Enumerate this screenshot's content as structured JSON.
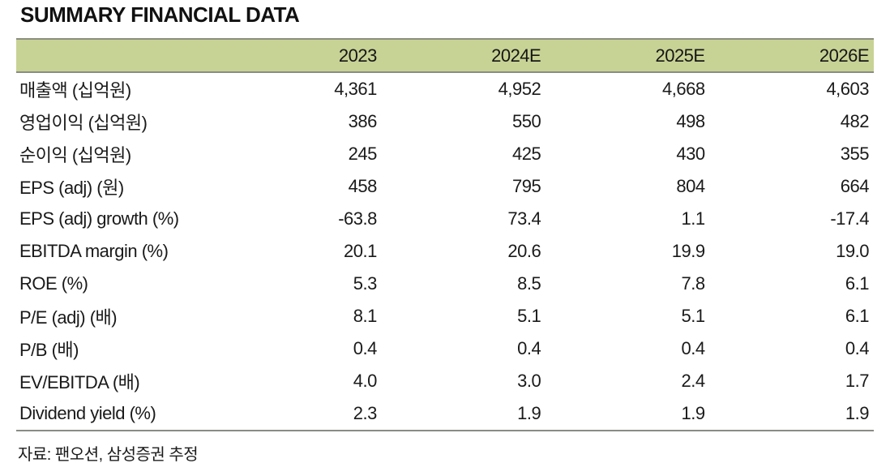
{
  "page": {
    "title": "SUMMARY FINANCIAL DATA",
    "source_note": "자료: 팬오션, 삼성증권 추정"
  },
  "colors": {
    "header_bg": "#c7d295",
    "rule_gray": "#898c85",
    "text": "#1a1a1a"
  },
  "table": {
    "columns": [
      "2023",
      "2024E",
      "2025E",
      "2026E"
    ],
    "rows": [
      {
        "label": "매출액 (십억원)",
        "values": [
          "4,361",
          "4,952",
          "4,668",
          "4,603"
        ]
      },
      {
        "label": "영업이익 (십억원)",
        "values": [
          "386",
          "550",
          "498",
          "482"
        ]
      },
      {
        "label": "순이익 (십억원)",
        "values": [
          "245",
          "425",
          "430",
          "355"
        ]
      },
      {
        "label": "EPS (adj) (원)",
        "values": [
          "458",
          "795",
          "804",
          "664"
        ]
      },
      {
        "label": "EPS (adj) growth (%)",
        "values": [
          "-63.8",
          "73.4",
          "1.1",
          "-17.4"
        ]
      },
      {
        "label": "EBITDA margin (%)",
        "values": [
          "20.1",
          "20.6",
          "19.9",
          "19.0"
        ]
      },
      {
        "label": "ROE (%)",
        "values": [
          "5.3",
          "8.5",
          "7.8",
          "6.1"
        ]
      },
      {
        "label": "P/E (adj) (배)",
        "values": [
          "8.1",
          "5.1",
          "5.1",
          "6.1"
        ]
      },
      {
        "label": "P/B (배)",
        "values": [
          "0.4",
          "0.4",
          "0.4",
          "0.4"
        ]
      },
      {
        "label": "EV/EBITDA (배)",
        "values": [
          "4.0",
          "3.0",
          "2.4",
          "1.7"
        ]
      },
      {
        "label": "Dividend yield (%)",
        "values": [
          "2.3",
          "1.9",
          "1.9",
          "1.9"
        ]
      }
    ]
  }
}
